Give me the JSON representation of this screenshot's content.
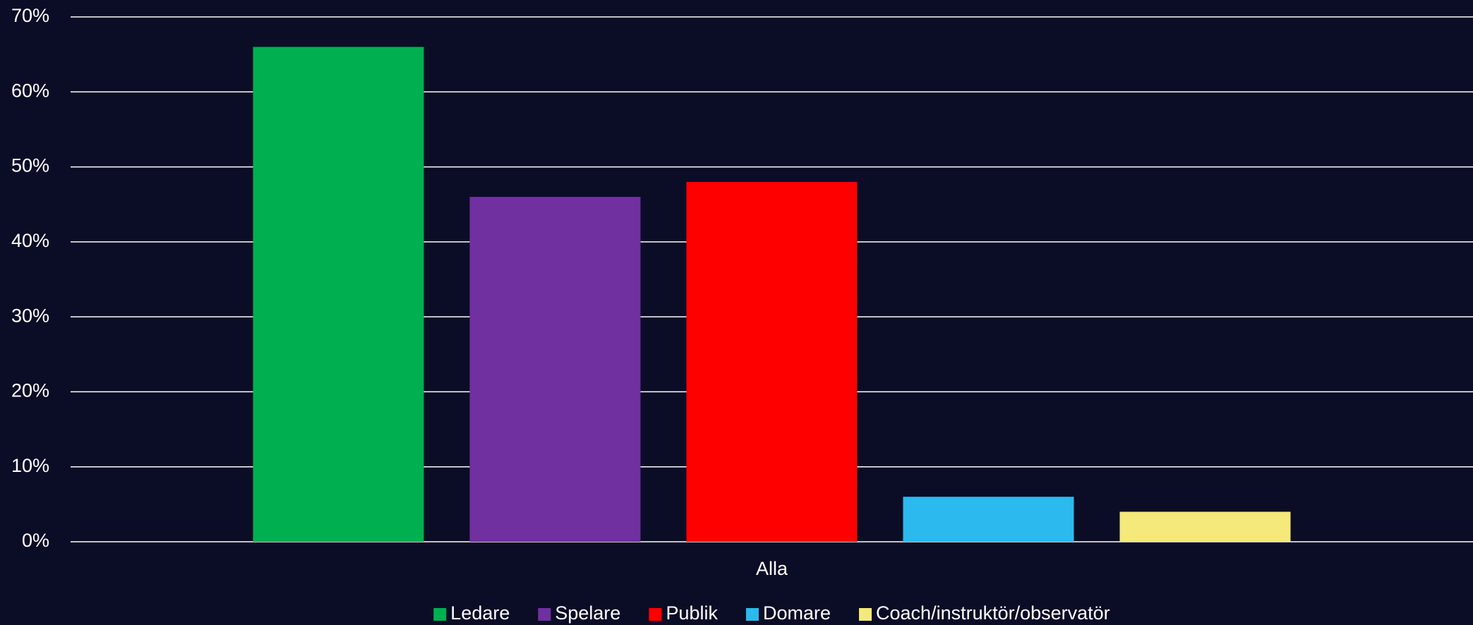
{
  "chart_data": {
    "type": "bar",
    "categories": [
      "Alla"
    ],
    "series": [
      {
        "name": "Ledare",
        "color": "#00b050",
        "values": [
          66
        ]
      },
      {
        "name": "Spelare",
        "color": "#7030a0",
        "values": [
          46
        ]
      },
      {
        "name": "Publik",
        "color": "#ff0000",
        "values": [
          48
        ]
      },
      {
        "name": "Domare",
        "color": "#2bb9ee",
        "values": [
          6
        ]
      },
      {
        "name": "Coach/instruktör/observatör",
        "color": "#f4e97a",
        "values": [
          4
        ]
      }
    ],
    "ylim": [
      0,
      70
    ],
    "yticks": [
      {
        "value": 0,
        "label": "0%"
      },
      {
        "value": 10,
        "label": "10%"
      },
      {
        "value": 20,
        "label": "20%"
      },
      {
        "value": 30,
        "label": "30%"
      },
      {
        "value": 40,
        "label": "40%"
      },
      {
        "value": 50,
        "label": "50%"
      },
      {
        "value": 60,
        "label": "60%"
      },
      {
        "value": 70,
        "label": "70%"
      }
    ],
    "grid": true,
    "legend": "bottom"
  }
}
